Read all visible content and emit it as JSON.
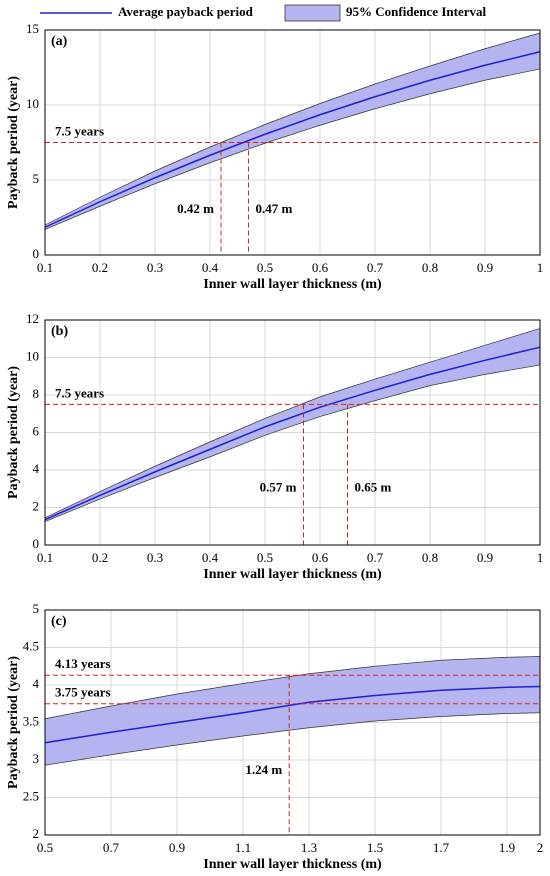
{
  "chart_data": [
    {
      "type": "line",
      "label": "(a)",
      "xlabel": "Inner wall layer thickness (m)",
      "ylabel": "Payback period (year)",
      "x": [
        0.1,
        0.2,
        0.3,
        0.4,
        0.5,
        0.6,
        0.7,
        0.8,
        0.9,
        1
      ],
      "series": [
        {
          "name": "Average payback period",
          "color": "#1f1fd0",
          "values": [
            1.85,
            3.55,
            5.15,
            6.65,
            8.05,
            9.35,
            10.55,
            11.65,
            12.65,
            13.55
          ]
        },
        {
          "name": "95% Confidence Interval",
          "color": "#b4b4f0",
          "lower": [
            1.7,
            3.25,
            4.75,
            6.15,
            7.45,
            8.65,
            9.75,
            10.75,
            11.65,
            12.4
          ],
          "upper": [
            2.0,
            3.85,
            5.6,
            7.2,
            8.7,
            10.1,
            11.4,
            12.6,
            13.75,
            14.8
          ]
        }
      ],
      "hlines": [
        {
          "value": 7.5,
          "label": "7.5 years"
        }
      ],
      "vlines": [
        {
          "value": 0.42,
          "label": "0.42 m"
        },
        {
          "value": 0.47,
          "label": "0.47 m"
        }
      ],
      "xlim": [
        0.1,
        1
      ],
      "xticks": [
        0.1,
        0.2,
        0.3,
        0.4,
        0.5,
        0.6,
        0.7,
        0.8,
        0.9,
        1
      ],
      "ylim": [
        0,
        15
      ],
      "yticks": [
        0,
        5,
        10,
        15
      ],
      "grid": true
    },
    {
      "type": "line",
      "label": "(b)",
      "xlabel": "Inner wall layer thickness (m)",
      "ylabel": "Payback period (year)",
      "x": [
        0.1,
        0.2,
        0.3,
        0.4,
        0.5,
        0.6,
        0.7,
        0.8,
        0.9,
        1
      ],
      "series": [
        {
          "color": "#1f1fd0",
          "values": [
            1.35,
            2.65,
            3.9,
            5.1,
            6.3,
            7.35,
            8.25,
            9.1,
            9.85,
            10.55
          ]
        },
        {
          "color": "#b4b4f0",
          "lower": [
            1.25,
            2.45,
            3.6,
            4.7,
            5.85,
            6.85,
            7.7,
            8.5,
            9.1,
            9.6
          ],
          "upper": [
            1.45,
            2.85,
            4.2,
            5.5,
            6.75,
            7.9,
            8.85,
            9.75,
            10.65,
            11.55
          ]
        }
      ],
      "hlines": [
        {
          "value": 7.5,
          "label": "7.5 years"
        }
      ],
      "vlines": [
        {
          "value": 0.57,
          "label": "0.57 m"
        },
        {
          "value": 0.65,
          "label": "0.65 m"
        }
      ],
      "xlim": [
        0.1,
        1
      ],
      "xticks": [
        0.1,
        0.2,
        0.3,
        0.4,
        0.5,
        0.6,
        0.7,
        0.8,
        0.9,
        1
      ],
      "ylim": [
        0,
        12
      ],
      "yticks": [
        0,
        2,
        4,
        6,
        8,
        10,
        12
      ],
      "grid": true
    },
    {
      "type": "line",
      "label": "(c)",
      "xlabel": "Inner wall layer thickness (m)",
      "ylabel": "Payback period (year)",
      "x": [
        0.5,
        0.7,
        0.9,
        1.1,
        1.3,
        1.5,
        1.7,
        1.9,
        2
      ],
      "series": [
        {
          "color": "#1f1fd0",
          "values": [
            3.23,
            3.37,
            3.5,
            3.63,
            3.77,
            3.86,
            3.93,
            3.97,
            3.98
          ]
        },
        {
          "color": "#b4b4f0",
          "lower": [
            2.93,
            3.07,
            3.2,
            3.32,
            3.43,
            3.52,
            3.58,
            3.62,
            3.63
          ],
          "upper": [
            3.55,
            3.72,
            3.88,
            4.02,
            4.15,
            4.25,
            4.33,
            4.37,
            4.38
          ]
        }
      ],
      "hlines": [
        {
          "value": 4.13,
          "label": "4.13 years"
        },
        {
          "value": 3.75,
          "label": "3.75 years"
        }
      ],
      "vlines": [
        {
          "value": 1.24,
          "label": "1.24 m"
        }
      ],
      "xlim": [
        0.5,
        2
      ],
      "xticks": [
        0.5,
        0.7,
        0.9,
        1.1,
        1.3,
        1.5,
        1.7,
        1.9,
        2
      ],
      "ylim": [
        2,
        5
      ],
      "yticks": [
        2,
        2.5,
        3,
        3.5,
        4,
        4.5,
        5
      ],
      "grid": true
    }
  ]
}
